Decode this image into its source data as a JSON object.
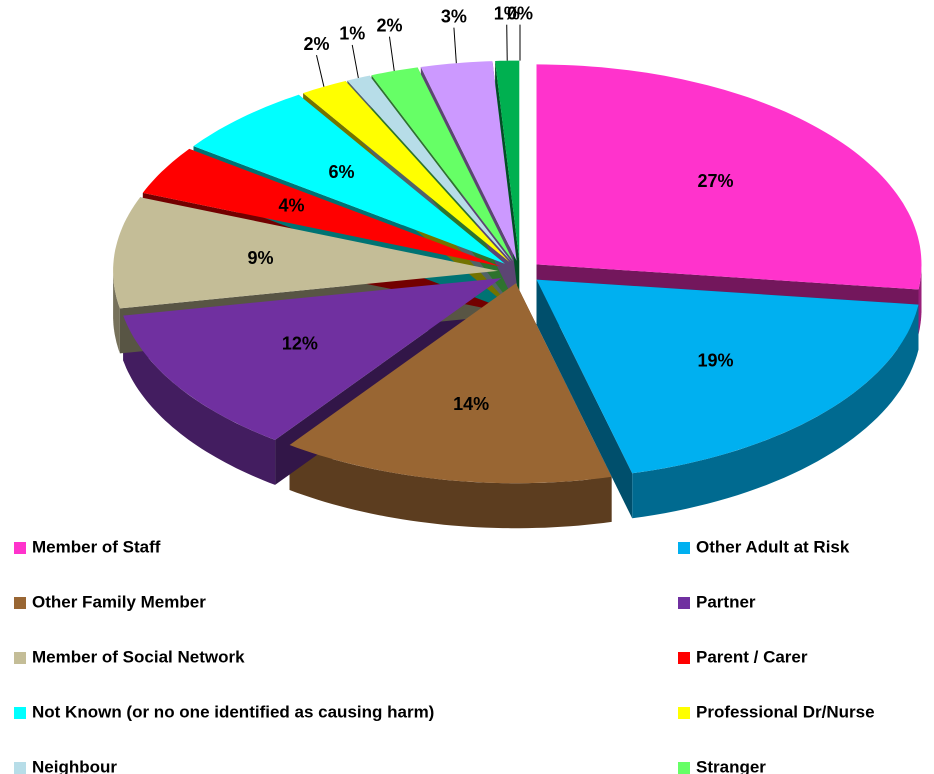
{
  "chart_data": {
    "type": "pie3d",
    "categories": [
      "Member of Staff",
      "Other Adult at Risk",
      "Other Family Member",
      "Partner",
      "Member of Social Network",
      "Parent / Carer",
      "Not Known (or no one identified as causing harm)",
      "Professional Dr/Nurse",
      "Neighbour",
      "Stranger",
      null,
      null,
      null
    ],
    "values": [
      27,
      19,
      14,
      12,
      9,
      4,
      6,
      2,
      1,
      2,
      3,
      1,
      0
    ],
    "value_labels": [
      "27%",
      "19%",
      "14%",
      "12%",
      "9%",
      "4%",
      "6%",
      "2%",
      "1%",
      "2%",
      "3%",
      "1%",
      "0%"
    ],
    "colors": [
      "#ff33cc",
      "#00b0f0",
      "#996633",
      "#7030a0",
      "#c4bd97",
      "#ff0000",
      "#00ffff",
      "#ffff00",
      "#b7dde8",
      "#66ff66",
      "#cc99ff",
      "#00b050",
      "#ffc000"
    ],
    "legend": "bottom"
  }
}
